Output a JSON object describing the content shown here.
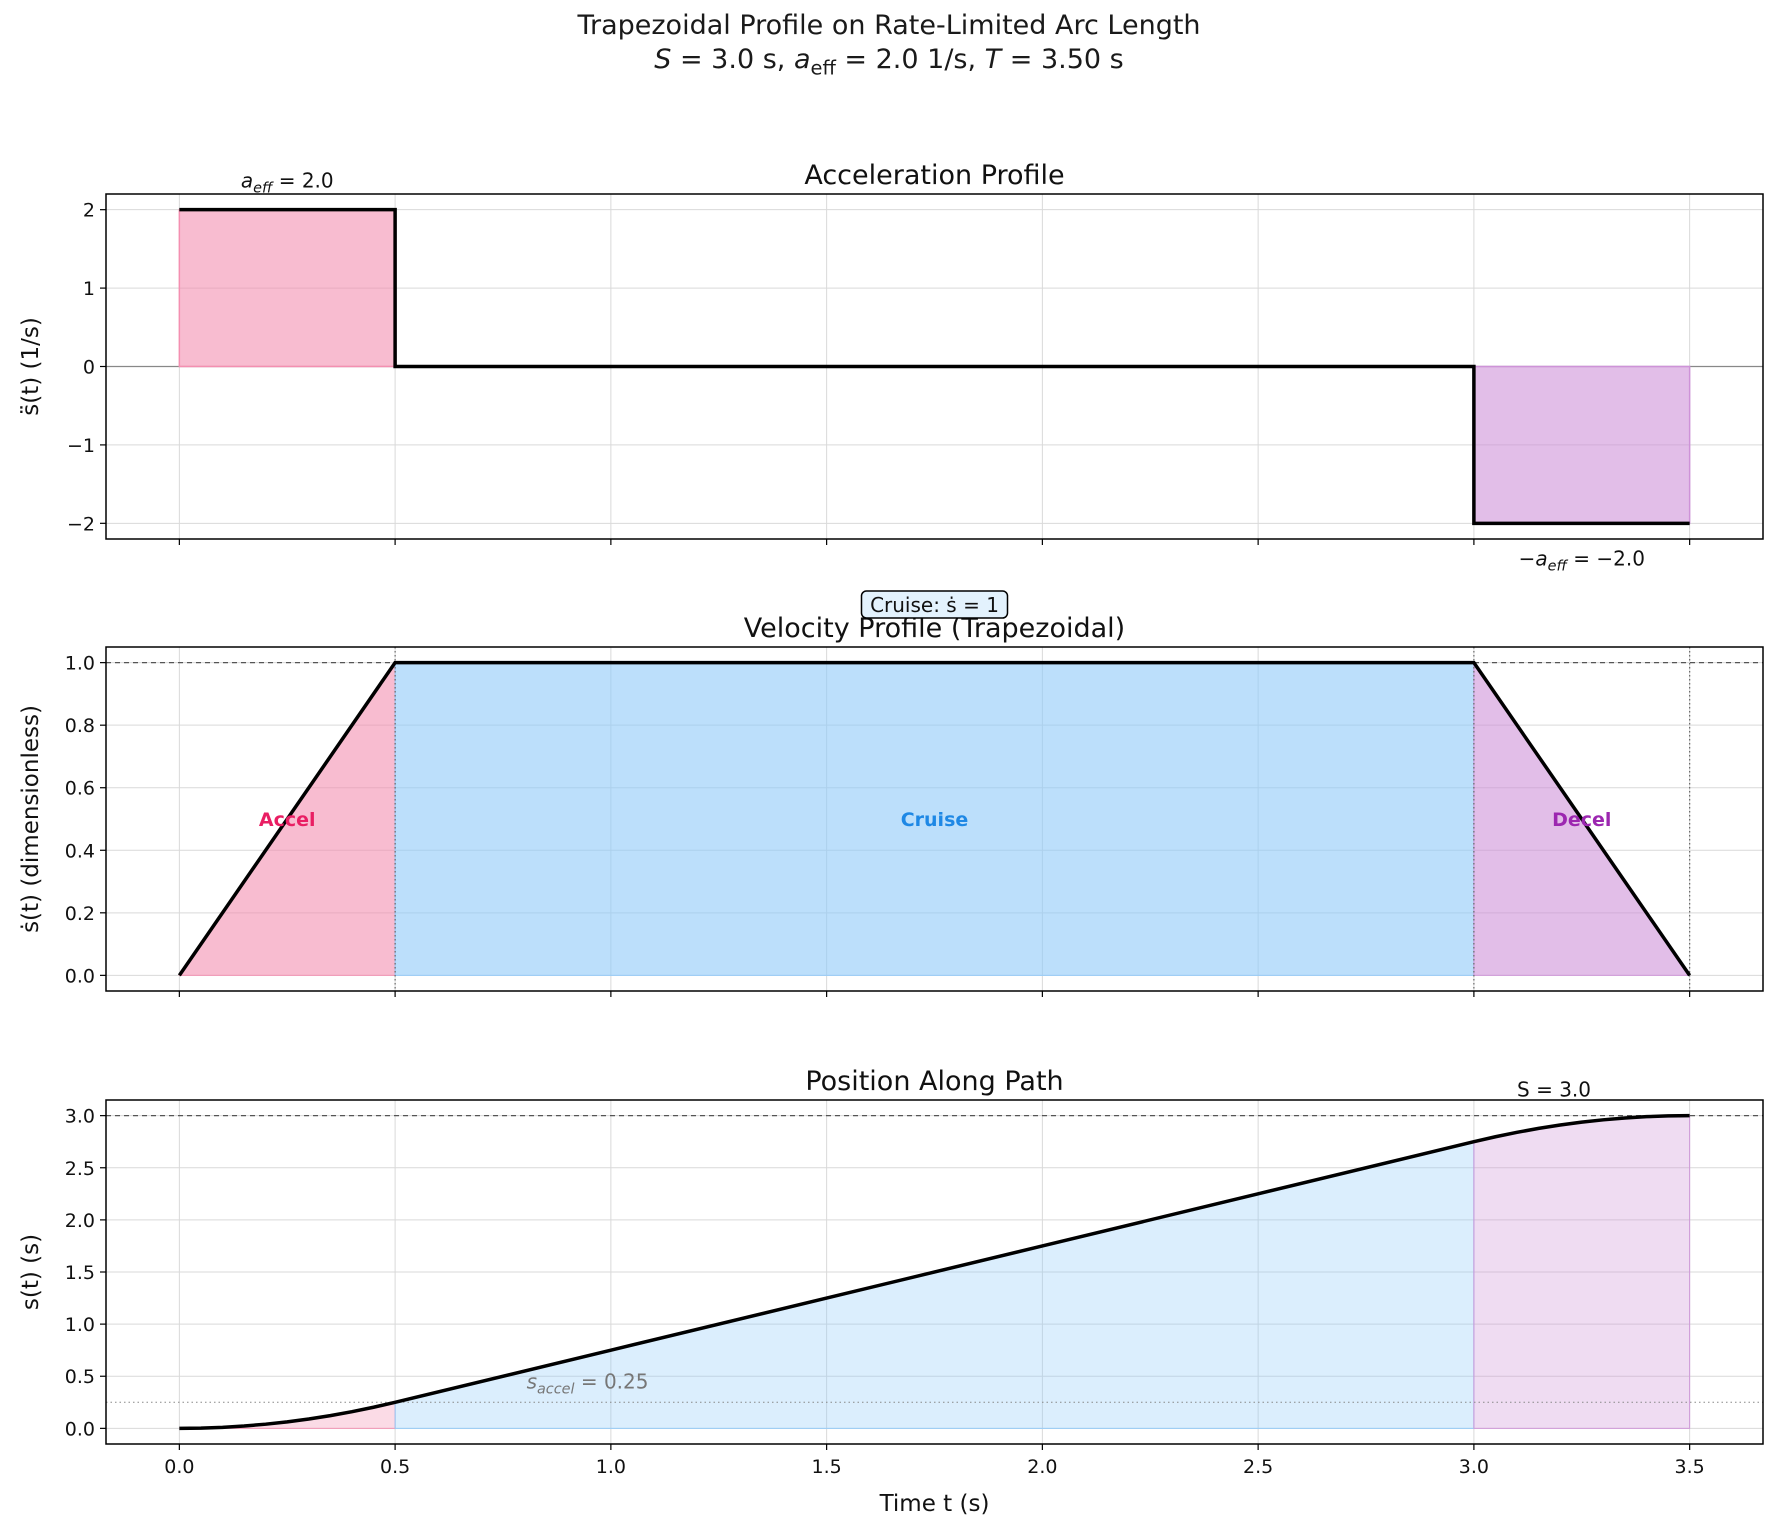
{
  "figure": {
    "title_line1": "Trapezoidal Profile on Rate-Limited Arc Length",
    "title_line2": "S = 3.0 s,  a_eff = 2.0 1/s,  T = 3.50 s"
  },
  "colors": {
    "accel": "#f48fb1",
    "accel_text": "#e91e63",
    "cruise": "#90caf9",
    "cruise_text": "#1e88e5",
    "decel": "#ce93d8",
    "decel_text": "#9c27b0",
    "curve": "#000000"
  },
  "chart_data": [
    {
      "type": "line",
      "title": "Acceleration Profile",
      "ylabel": "s̈(t)  (1/s)",
      "xlabel": "",
      "xlim": [
        -0.17,
        3.67
      ],
      "ylim": [
        -2.2,
        2.2
      ],
      "xticks": [
        0.0,
        0.5,
        1.0,
        1.5,
        2.0,
        2.5,
        3.0,
        3.5
      ],
      "show_xtick_labels": false,
      "yticks": [
        -2,
        -1,
        0,
        1,
        2
      ],
      "ytick_labels": [
        "−2",
        "−1",
        "0",
        "1",
        "2"
      ],
      "grid": true,
      "series": [
        {
          "x": [
            0.0,
            0.5,
            0.5,
            3.0,
            3.0,
            3.5
          ],
          "y": [
            2.0,
            2.0,
            0.0,
            0.0,
            -2.0,
            -2.0
          ]
        }
      ],
      "phases": [
        {
          "phase": "accel",
          "x0": 0.0,
          "x1": 0.5,
          "y": 2.0
        },
        {
          "phase": "decel",
          "x0": 3.0,
          "x1": 3.5,
          "y": -2.0
        }
      ],
      "annotations": [
        {
          "text": "a_eff = 2.0",
          "x": 0.25,
          "y": 2.0,
          "pos": "above"
        },
        {
          "text": "−a_eff = −2.0",
          "x": 3.25,
          "y": -2.0,
          "pos": "below"
        }
      ]
    },
    {
      "type": "line",
      "title": "Velocity Profile (Trapezoidal)",
      "ylabel": "ṡ(t)  (dimensionless)",
      "xlabel": "",
      "xlim": [
        -0.17,
        3.67
      ],
      "ylim": [
        -0.05,
        1.05
      ],
      "xticks": [
        0.0,
        0.5,
        1.0,
        1.5,
        2.0,
        2.5,
        3.0,
        3.5
      ],
      "show_xtick_labels": false,
      "yticks": [
        0.0,
        0.2,
        0.4,
        0.6,
        0.8,
        1.0
      ],
      "ytick_labels": [
        "0.0",
        "0.2",
        "0.4",
        "0.6",
        "0.8",
        "1.0"
      ],
      "grid": true,
      "series": [
        {
          "x": [
            0.0,
            0.5,
            3.0,
            3.5
          ],
          "y": [
            0.0,
            1.0,
            1.0,
            0.0
          ]
        }
      ],
      "phases": [
        {
          "phase": "accel",
          "x0": 0.0,
          "x1": 0.5,
          "label": "Accel"
        },
        {
          "phase": "cruise",
          "x0": 0.5,
          "x1": 3.0,
          "label": "Cruise"
        },
        {
          "phase": "decel",
          "x0": 3.0,
          "x1": 3.5,
          "label": "Decel"
        }
      ],
      "ref_hline": 1.0,
      "ref_vlines": [
        0.5,
        3.0,
        3.5
      ],
      "annotations": [
        {
          "text": "Cruise: ṡ = 1",
          "x": 1.75,
          "y": 1.0,
          "boxed": true
        }
      ]
    },
    {
      "type": "line",
      "title": "Position Along Path",
      "ylabel": "s(t)  (s)",
      "xlabel": "Time t (s)",
      "xlim": [
        -0.17,
        3.67
      ],
      "ylim": [
        -0.15,
        3.15
      ],
      "xticks": [
        0.0,
        0.5,
        1.0,
        1.5,
        2.0,
        2.5,
        3.0,
        3.5
      ],
      "xtick_labels": [
        "0.0",
        "0.5",
        "1.0",
        "1.5",
        "2.0",
        "2.5",
        "3.0",
        "3.5"
      ],
      "show_xtick_labels": true,
      "yticks": [
        0.0,
        0.5,
        1.0,
        1.5,
        2.0,
        2.5,
        3.0
      ],
      "ytick_labels": [
        "0.0",
        "0.5",
        "1.0",
        "1.5",
        "2.0",
        "2.5",
        "3.0"
      ],
      "grid": true,
      "series": [
        {
          "x": [
            0.0,
            0.05,
            0.1,
            0.15,
            0.2,
            0.25,
            0.3,
            0.35,
            0.4,
            0.45,
            0.5,
            1.0,
            1.5,
            2.0,
            2.5,
            3.0,
            3.05,
            3.1,
            3.15,
            3.2,
            3.25,
            3.3,
            3.35,
            3.4,
            3.45,
            3.5
          ],
          "y": [
            0.0,
            0.0025,
            0.01,
            0.0225,
            0.04,
            0.0625,
            0.09,
            0.1225,
            0.16,
            0.2025,
            0.25,
            0.75,
            1.25,
            1.75,
            2.25,
            2.75,
            2.7975,
            2.84,
            2.8775,
            2.91,
            2.9375,
            2.96,
            2.9775,
            2.99,
            2.9975,
            3.0
          ]
        }
      ],
      "phases": [
        {
          "phase": "accel",
          "x0": 0.0,
          "x1": 0.5
        },
        {
          "phase": "cruise",
          "x0": 0.5,
          "x1": 3.0
        },
        {
          "phase": "decel",
          "x0": 3.0,
          "x1": 3.5
        }
      ],
      "ref_hline": 3.0,
      "ref_hline_dotted": 0.25,
      "annotations": [
        {
          "text": "S = 3.0",
          "x": 3.1,
          "y": 3.0,
          "pos": "above"
        },
        {
          "text": "s_accel = 0.25",
          "x": 0.8,
          "y": 0.25,
          "pos": "above",
          "muted": true
        }
      ]
    }
  ]
}
